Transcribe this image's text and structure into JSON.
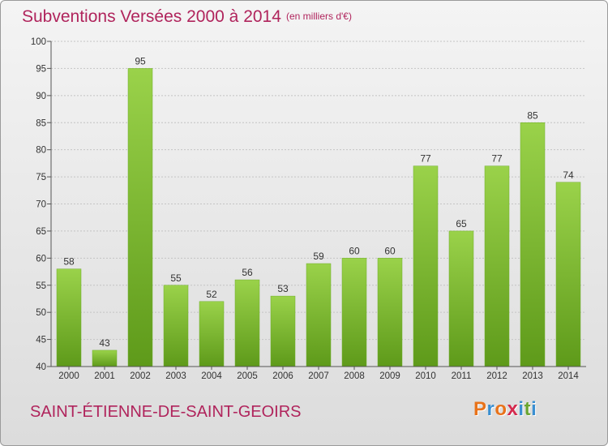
{
  "header": {
    "title": "Subventions Versées 2000 à 2014",
    "unit": "(en milliers d'€)"
  },
  "footer": {
    "place": "SAINT-ÉTIENNE-DE-SAINT-GEOIRS",
    "logo_letters": [
      "P",
      "r",
      "o",
      "x",
      "i",
      "t",
      "i"
    ],
    "logo_colors": [
      "#e8731b",
      "#3a8fd1",
      "#e8731b",
      "#d42a4e",
      "#3a8fd1",
      "#6aa531",
      "#3a8fd1"
    ]
  },
  "chart_data": {
    "type": "bar",
    "title": "Subventions Versées 2000 à 2014",
    "subtitle": "(en milliers d'€)",
    "categories": [
      "2000",
      "2001",
      "2002",
      "2003",
      "2004",
      "2005",
      "2006",
      "2007",
      "2008",
      "2009",
      "2010",
      "2011",
      "2012",
      "2013",
      "2014"
    ],
    "values": [
      58,
      43,
      95,
      55,
      52,
      56,
      53,
      59,
      60,
      60,
      77,
      65,
      77,
      85,
      74
    ],
    "ylim": [
      40,
      100
    ],
    "yticks": [
      40,
      45,
      50,
      55,
      60,
      65,
      70,
      75,
      80,
      85,
      90,
      95,
      100
    ],
    "grid": true,
    "bar_color": "#8cc63f",
    "bar_color_dark": "#5e9a1a"
  }
}
